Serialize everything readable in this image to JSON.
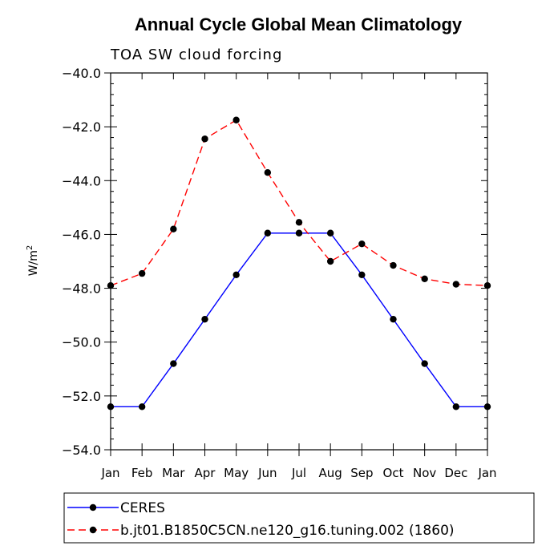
{
  "chart_data": {
    "type": "line",
    "title": "Annual Cycle Global Mean Climatology",
    "subtitle": "TOA SW cloud forcing",
    "ylabel_base": "W/m",
    "ylabel_sup": "2",
    "xlabel": "",
    "categories": [
      "Jan",
      "Feb",
      "Mar",
      "Apr",
      "May",
      "Jun",
      "Jul",
      "Aug",
      "Sep",
      "Oct",
      "Nov",
      "Dec",
      "Jan"
    ],
    "ylim": [
      -54.0,
      -40.0
    ],
    "yticks": [
      -54.0,
      -52.0,
      -50.0,
      -48.0,
      -46.0,
      -44.0,
      -42.0,
      -40.0
    ],
    "ytick_labels": [
      "−54.0",
      "−52.0",
      "−50.0",
      "−48.0",
      "−46.0",
      "−44.0",
      "−42.0",
      "−40.0"
    ],
    "grid": false,
    "legend_position": "bottom-left",
    "series": [
      {
        "name": "CERES",
        "color": "#0000ff",
        "dash": "solid",
        "values": [
          -52.4,
          -52.4,
          -50.8,
          -49.15,
          -47.5,
          -45.95,
          -45.95,
          -45.95,
          -47.5,
          -49.15,
          -50.8,
          -52.4,
          -52.4
        ]
      },
      {
        "name": "b.jt01.B1850C5CN.ne120_g16.tuning.002 (1860)",
        "color": "#ff0000",
        "dash": "dashed",
        "values": [
          -47.9,
          -47.45,
          -45.8,
          -42.45,
          -41.75,
          -43.7,
          -45.55,
          -47.0,
          -46.35,
          -47.15,
          -47.65,
          -47.85,
          -47.9
        ]
      }
    ]
  }
}
